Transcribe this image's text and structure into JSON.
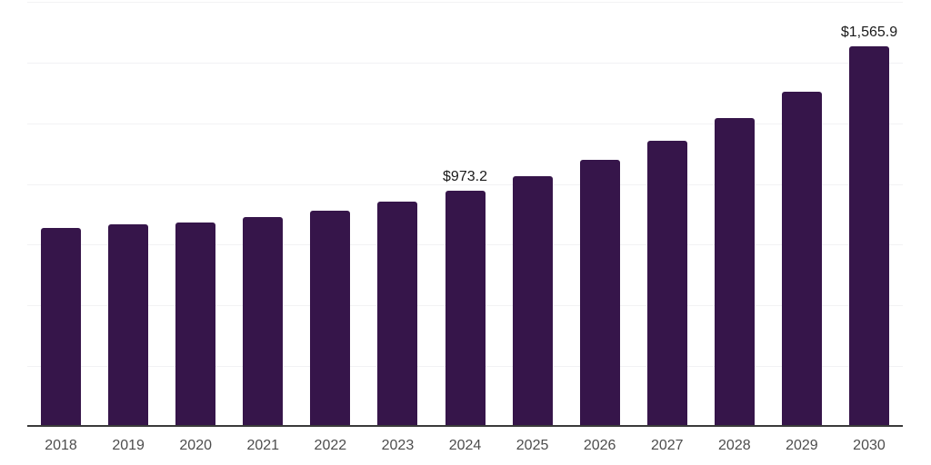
{
  "chart_data": {
    "type": "bar",
    "title": "",
    "categories": [
      "2018",
      "2019",
      "2020",
      "2021",
      "2022",
      "2023",
      "2024",
      "2025",
      "2026",
      "2027",
      "2028",
      "2029",
      "2030"
    ],
    "values": [
      819,
      835,
      843,
      863,
      890,
      928,
      973.2,
      1031,
      1098,
      1177,
      1270,
      1378,
      1565.9
    ],
    "data_labels": {
      "2024": "$973.2",
      "2030": "$1,565.9"
    },
    "xlabel": "",
    "ylabel": "",
    "ylim": [
      0,
      1750
    ],
    "gridline_step": 250,
    "grid": "horizontal-only",
    "legend": "none",
    "y_axis_ticks_visible": false,
    "colors": {
      "bar": "#36154a",
      "axis_line": "#3a3a3a",
      "gridline": "#f2f2f4",
      "value_label": "#1a1a1a",
      "tick_label": "#4d4d4d",
      "background": "#ffffff"
    }
  }
}
